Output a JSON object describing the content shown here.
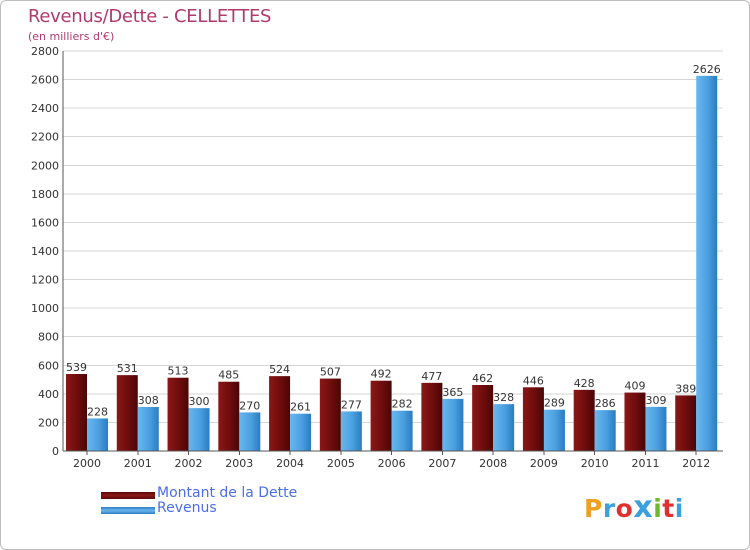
{
  "chart_data": {
    "type": "bar",
    "title": "Revenus/Dette - CELLETTES",
    "subtitle": "(en milliers d'€)",
    "categories": [
      "2000",
      "2001",
      "2002",
      "2003",
      "2004",
      "2005",
      "2006",
      "2007",
      "2008",
      "2009",
      "2010",
      "2011",
      "2012"
    ],
    "series": [
      {
        "name": "Montant de la Dette",
        "color": "#7a1010",
        "values": [
          539,
          531,
          513,
          485,
          524,
          507,
          492,
          477,
          462,
          446,
          428,
          409,
          389
        ]
      },
      {
        "name": "Revenus",
        "color": "#4aa0e0",
        "values": [
          228,
          308,
          300,
          270,
          261,
          277,
          282,
          365,
          328,
          289,
          286,
          309,
          2626
        ]
      }
    ],
    "ylim": [
      0,
      2800
    ],
    "yticks": [
      0,
      200,
      400,
      600,
      800,
      1000,
      1200,
      1400,
      1600,
      1800,
      2000,
      2200,
      2400,
      2600,
      2800
    ],
    "grid": true,
    "legend_position": "bottom-left",
    "xlabel": "",
    "ylabel": ""
  },
  "logo": {
    "text": "Proxiti",
    "letters": [
      "P",
      "r",
      "o",
      "x",
      "i",
      "t",
      "i"
    ],
    "colors": [
      "#f0a020",
      "#3aa0e0",
      "#e03030",
      "#3aa0e0",
      "#70b830",
      "#e03030",
      "#3aa0e0"
    ]
  }
}
